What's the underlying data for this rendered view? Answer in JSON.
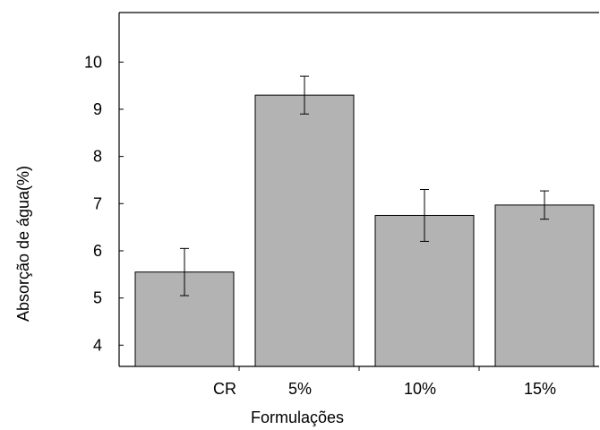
{
  "chart_data": {
    "type": "bar",
    "title": "",
    "xlabel": "Formulações",
    "ylabel": "Absorção de água(%)",
    "categories": [
      "CR",
      "5%",
      "10%",
      "15%"
    ],
    "values": [
      5.55,
      9.3,
      6.75,
      6.97
    ],
    "error": [
      0.5,
      0.4,
      0.55,
      0.3
    ],
    "ylim": [
      3.55,
      11.05
    ],
    "yticks": [
      4,
      5,
      6,
      7,
      8,
      9,
      10
    ],
    "ytick_labels": [
      "4",
      "5",
      "6",
      "7",
      "8",
      "9",
      "10"
    ],
    "grid": false,
    "colors": {
      "bar_fill": "#b3b3b3",
      "bar_stroke": "#000000",
      "axis": "#000000"
    }
  }
}
